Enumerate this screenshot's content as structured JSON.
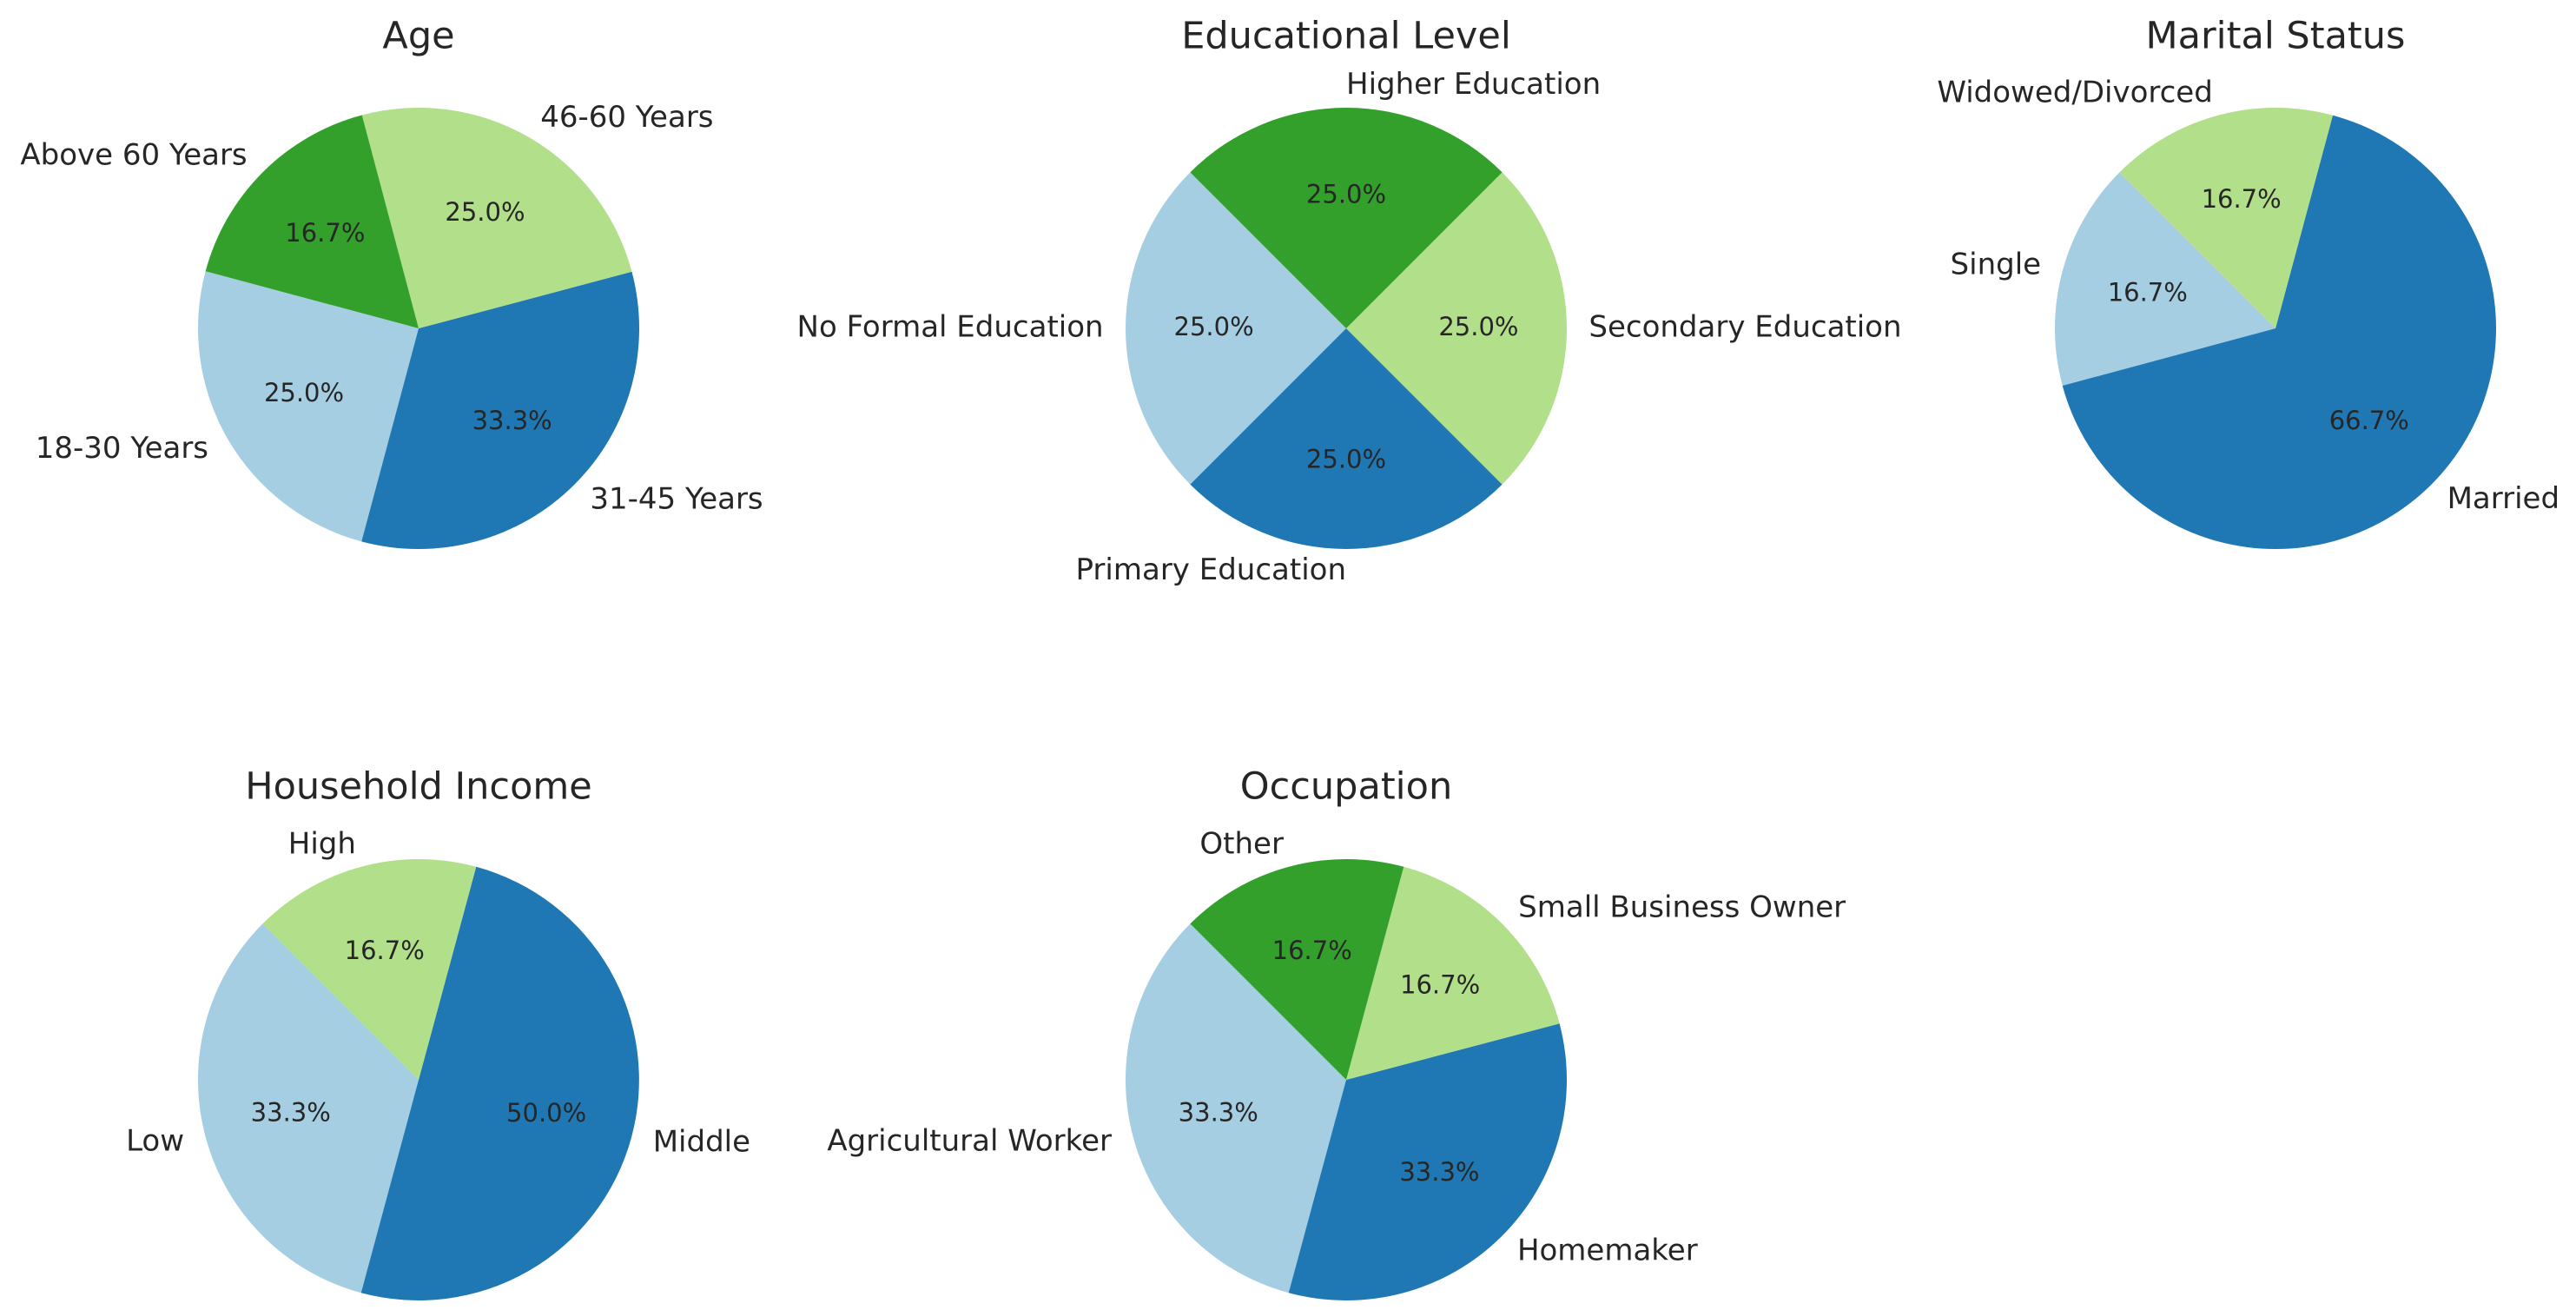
{
  "chart_data": [
    {
      "type": "pie",
      "title": "Age",
      "start_angle_deg": 165,
      "direction": "counterclockwise",
      "slices": [
        {
          "label": "18-30 Years",
          "value": 25.0,
          "pct": "25.0%",
          "color": "#a6cee3"
        },
        {
          "label": "31-45 Years",
          "value": 33.3,
          "pct": "33.3%",
          "color": "#1f78b4"
        },
        {
          "label": "46-60 Years",
          "value": 25.0,
          "pct": "25.0%",
          "color": "#b2df8a"
        },
        {
          "label": "Above 60 Years",
          "value": 16.7,
          "pct": "16.7%",
          "color": "#33a02c"
        }
      ]
    },
    {
      "type": "pie",
      "title": "Educational Level",
      "start_angle_deg": 135,
      "direction": "counterclockwise",
      "slices": [
        {
          "label": "No Formal Education",
          "value": 25.0,
          "pct": "25.0%",
          "color": "#a6cee3"
        },
        {
          "label": "Primary Education",
          "value": 25.0,
          "pct": "25.0%",
          "color": "#1f78b4"
        },
        {
          "label": "Secondary Education",
          "value": 25.0,
          "pct": "25.0%",
          "color": "#b2df8a"
        },
        {
          "label": "Higher Education",
          "value": 25.0,
          "pct": "25.0%",
          "color": "#33a02c"
        }
      ]
    },
    {
      "type": "pie",
      "title": "Marital Status",
      "start_angle_deg": 135,
      "direction": "counterclockwise",
      "slices": [
        {
          "label": "Single",
          "value": 16.7,
          "pct": "16.7%",
          "color": "#a6cee3"
        },
        {
          "label": "Married",
          "value": 66.7,
          "pct": "66.7%",
          "color": "#1f78b4"
        },
        {
          "label": "Widowed/Divorced",
          "value": 16.7,
          "pct": "16.7%",
          "color": "#b2df8a"
        }
      ]
    },
    {
      "type": "pie",
      "title": "Household Income",
      "start_angle_deg": 135,
      "direction": "counterclockwise",
      "slices": [
        {
          "label": "Low",
          "value": 33.3,
          "pct": "33.3%",
          "color": "#a6cee3"
        },
        {
          "label": "Middle",
          "value": 50.0,
          "pct": "50.0%",
          "color": "#1f78b4"
        },
        {
          "label": "High",
          "value": 16.7,
          "pct": "16.7%",
          "color": "#b2df8a"
        }
      ]
    },
    {
      "type": "pie",
      "title": "Occupation",
      "start_angle_deg": 135,
      "direction": "counterclockwise",
      "slices": [
        {
          "label": "Agricultural Worker",
          "value": 33.3,
          "pct": "33.3%",
          "color": "#a6cee3"
        },
        {
          "label": "Homemaker",
          "value": 33.3,
          "pct": "33.3%",
          "color": "#1f78b4"
        },
        {
          "label": "Small Business Owner",
          "value": 16.7,
          "pct": "16.7%",
          "color": "#b2df8a"
        },
        {
          "label": "Other",
          "value": 16.7,
          "pct": "16.7%",
          "color": "#33a02c"
        }
      ]
    }
  ]
}
